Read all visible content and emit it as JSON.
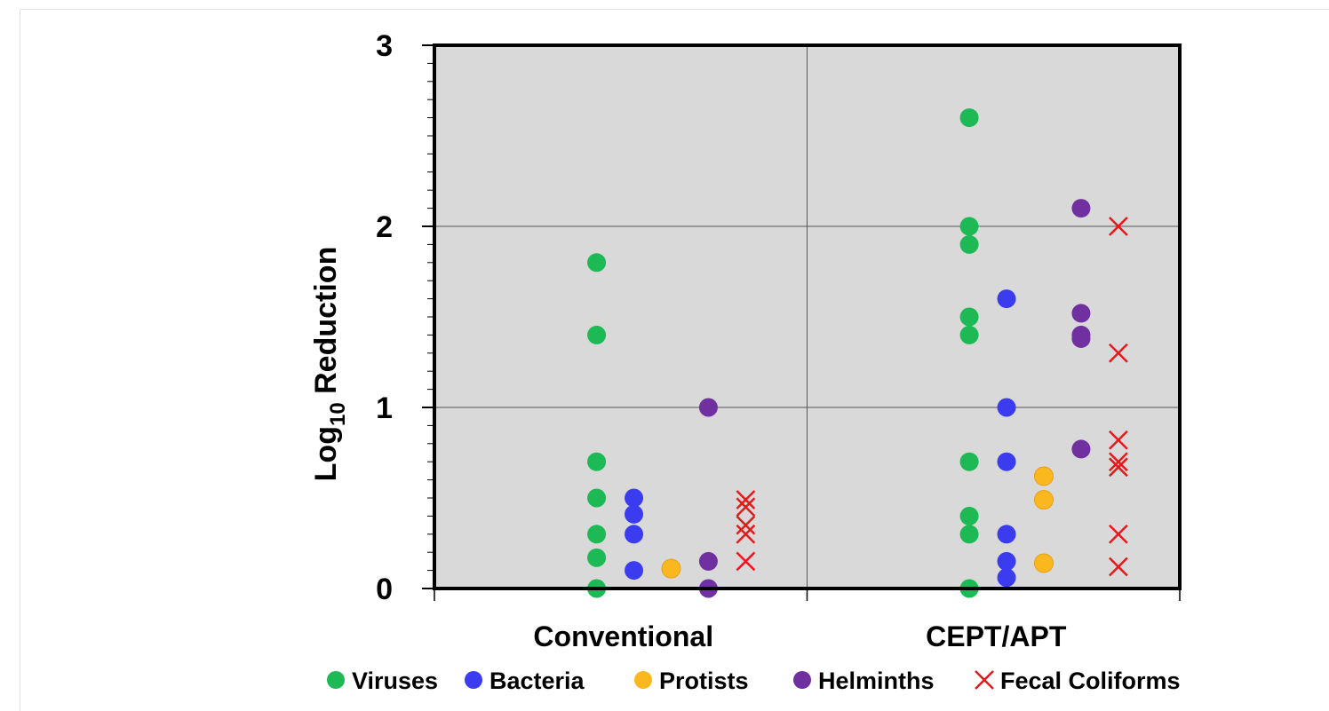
{
  "chart_data": {
    "type": "scatter",
    "title": "",
    "xlabel": "",
    "ylabel": {
      "base": "Log",
      "subscript": "10",
      "rest": " Reduction"
    },
    "categories": [
      "Conventional",
      "CEPT/APT"
    ],
    "ylim": [
      0,
      3
    ],
    "yticks": [
      "0",
      "1",
      "2",
      "3"
    ],
    "grid": true,
    "legend_position": "bottom",
    "series": [
      {
        "name": "Viruses",
        "color": "#1db954",
        "marker": "circle",
        "values": {
          "Conventional": [
            1.8,
            1.4,
            0.7,
            0.5,
            0.3,
            0.17,
            0.0
          ],
          "CEPT/APT": [
            2.6,
            2.0,
            1.9,
            1.5,
            1.4,
            0.7,
            0.4,
            0.3,
            0.0
          ]
        }
      },
      {
        "name": "Bacteria",
        "color": "#3b3bf0",
        "marker": "circle",
        "values": {
          "Conventional": [
            0.5,
            0.41,
            0.3,
            0.1
          ],
          "CEPT/APT": [
            1.6,
            1.0,
            0.7,
            0.3,
            0.15,
            0.06
          ]
        }
      },
      {
        "name": "Protists",
        "color": "#fbb81e",
        "marker": "circle",
        "values": {
          "Conventional": [
            0.11
          ],
          "CEPT/APT": [
            0.62,
            0.49,
            0.14
          ]
        }
      },
      {
        "name": "Helminths",
        "color": "#7030a0",
        "marker": "circle",
        "values": {
          "Conventional": [
            1.0,
            0.15,
            0.0
          ],
          "CEPT/APT": [
            2.1,
            1.52,
            1.4,
            1.38,
            0.77
          ]
        }
      },
      {
        "name": "Fecal Coliforms",
        "color": "#e8181a",
        "marker": "x",
        "values": {
          "Conventional": [
            0.49,
            0.45,
            0.35,
            0.3,
            0.15
          ],
          "CEPT/APT": [
            2.0,
            1.3,
            0.82,
            0.7,
            0.67,
            0.3,
            0.12
          ]
        }
      }
    ]
  }
}
